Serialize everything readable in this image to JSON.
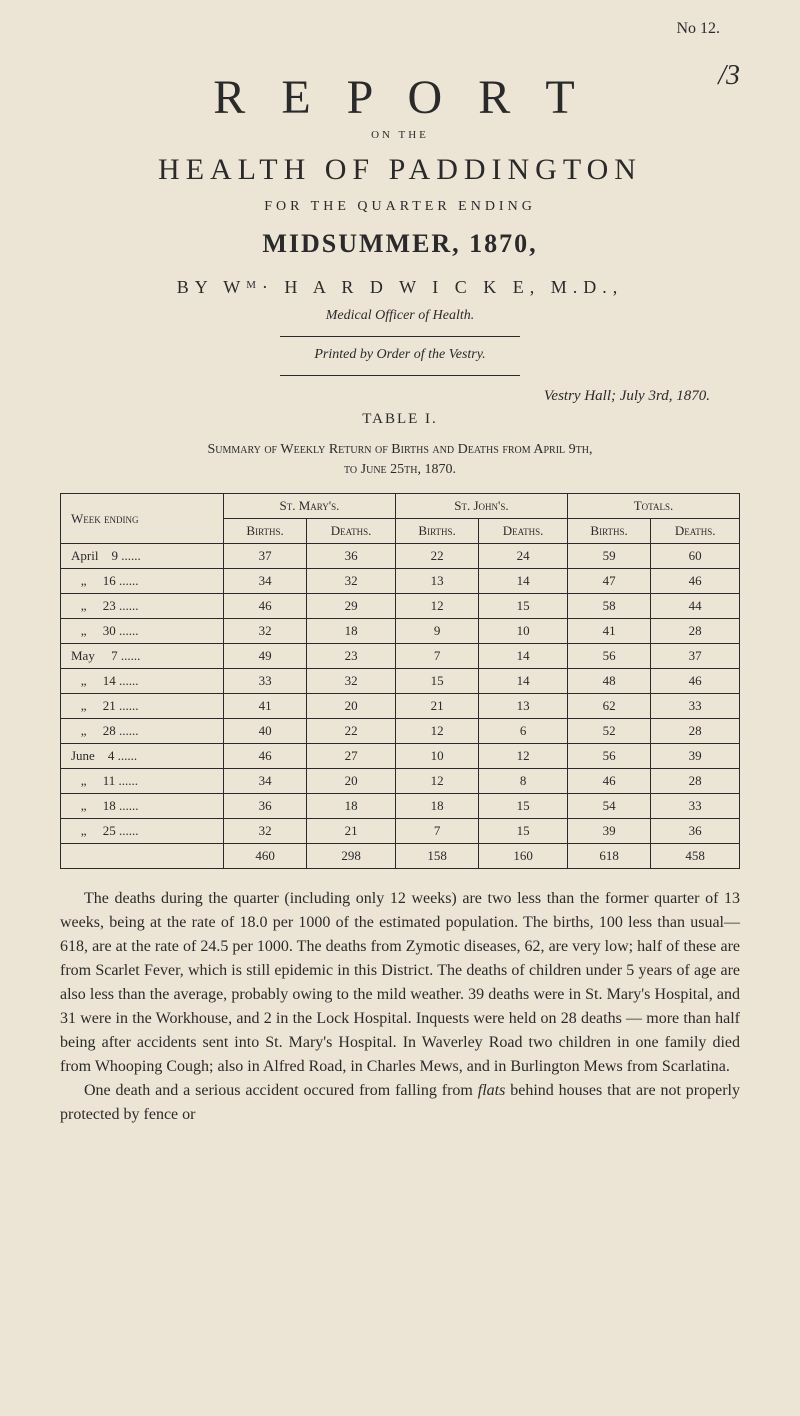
{
  "page_number": "No 12.",
  "handwritten": "/3",
  "title": "R E P O R T",
  "on_the": "ON THE",
  "health_title": "HEALTH OF PADDINGTON",
  "subtitle": "FOR THE QUARTER ENDING",
  "period": "MIDSUMMER, 1870,",
  "author": "BY Wᴹ· H A R D W I C K E, M.D.,",
  "officer": "Medical Officer of Health.",
  "printed_by": "Printed by Order of the Vestry.",
  "vestry_hall": "Vestry Hall; July 3rd, 1870.",
  "table_label": "TABLE I.",
  "summary_line1": "Summary of Weekly Return of Births and Deaths from April 9th,",
  "summary_line2": "to June 25th, 1870.",
  "table": {
    "col_week": "Week ending",
    "col_mary": "St. Mary's.",
    "col_john": "St. John's.",
    "col_totals": "Totals.",
    "sub_births": "Births.",
    "sub_deaths": "Deaths.",
    "rows": [
      {
        "week": "April    9 ......",
        "mb": "37",
        "md": "36",
        "jb": "22",
        "jd": "24",
        "tb": "59",
        "td": "60"
      },
      {
        "week": "   „     16 ......",
        "mb": "34",
        "md": "32",
        "jb": "13",
        "jd": "14",
        "tb": "47",
        "td": "46"
      },
      {
        "week": "   „     23 ......",
        "mb": "46",
        "md": "29",
        "jb": "12",
        "jd": "15",
        "tb": "58",
        "td": "44"
      },
      {
        "week": "   „     30 ......",
        "mb": "32",
        "md": "18",
        "jb": "9",
        "jd": "10",
        "tb": "41",
        "td": "28"
      },
      {
        "week": "May     7 ......",
        "mb": "49",
        "md": "23",
        "jb": "7",
        "jd": "14",
        "tb": "56",
        "td": "37"
      },
      {
        "week": "   „     14 ......",
        "mb": "33",
        "md": "32",
        "jb": "15",
        "jd": "14",
        "tb": "48",
        "td": "46"
      },
      {
        "week": "   „     21 ......",
        "mb": "41",
        "md": "20",
        "jb": "21",
        "jd": "13",
        "tb": "62",
        "td": "33"
      },
      {
        "week": "   „     28 ......",
        "mb": "40",
        "md": "22",
        "jb": "12",
        "jd": "6",
        "tb": "52",
        "td": "28"
      },
      {
        "week": "June    4 ......",
        "mb": "46",
        "md": "27",
        "jb": "10",
        "jd": "12",
        "tb": "56",
        "td": "39"
      },
      {
        "week": "   „     11 ......",
        "mb": "34",
        "md": "20",
        "jb": "12",
        "jd": "8",
        "tb": "46",
        "td": "28"
      },
      {
        "week": "   „     18 ......",
        "mb": "36",
        "md": "18",
        "jb": "18",
        "jd": "15",
        "tb": "54",
        "td": "33"
      },
      {
        "week": "   „     25 ......",
        "mb": "32",
        "md": "21",
        "jb": "7",
        "jd": "15",
        "tb": "39",
        "td": "36"
      }
    ],
    "totals": {
      "mb": "460",
      "md": "298",
      "jb": "158",
      "jd": "160",
      "tb": "618",
      "td": "458"
    }
  },
  "body": {
    "p1": "The deaths during the quarter (including only 12 weeks) are two less than the former quarter of 13 weeks, being at the rate of 18.0 per 1000 of the estimated population. The births, 100 less than usual—618, are at the rate of 24.5 per 1000. The deaths from Zymotic diseases, 62, are very low; half of these are from Scarlet Fever, which is still epidemic in this District. The deaths of children under 5 years of age are also less than the average, probably owing to the mild weather. 39 deaths were in St. Mary's Hospital, and 31 were in the Workhouse, and 2 in the Lock Hospital. Inquests were held on 28 deaths — more than half being after accidents sent into St. Mary's Hospital. In Waverley Road two children in one family died from Whooping Cough; also in Alfred Road, in Charles Mews, and in Burlington Mews from Scarlatina.",
    "p2_prefix": "One death and a serious accident occured from falling from ",
    "p2_em": "flats",
    "p2_suffix": " behind houses that are not properly protected by fence or"
  }
}
